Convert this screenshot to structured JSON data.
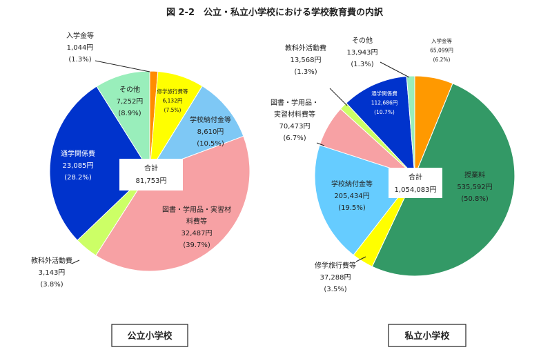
{
  "title": "図 2-2　公立・私立小学校における学校教育費の内訳",
  "chart_data": [
    {
      "type": "pie",
      "caption": "公立小学校",
      "total": {
        "label": "合計",
        "value": "81,753円"
      },
      "slices": [
        {
          "name": "入学金等",
          "amount": "1,044円",
          "percent": "(1.3%)",
          "value": 1.3,
          "color": "#FF8C00"
        },
        {
          "name": "修学旅行費等",
          "amount": "6,132円",
          "percent": "(7.5%)",
          "value": 7.5,
          "color": "#FFFF00"
        },
        {
          "name": "学校納付金等",
          "amount": "8,610円",
          "percent": "(10.5%)",
          "value": 10.5,
          "color": "#7EC8F5"
        },
        {
          "name": "図書・学用品・実習材料費等",
          "name_lines": [
            "図書・学用品・実習材",
            "料費等"
          ],
          "amount": "32,487円",
          "percent": "(39.7%)",
          "value": 39.7,
          "color": "#F7A1A4"
        },
        {
          "name": "教科外活動費",
          "amount": "3,143円",
          "percent": "(3.8%)",
          "value": 3.8,
          "color": "#CCFF66"
        },
        {
          "name": "通学関係費",
          "amount": "23,085円",
          "percent": "(28.2%)",
          "value": 28.2,
          "color": "#0033CC"
        },
        {
          "name": "その他",
          "amount": "7,252円",
          "percent": "(8.9%)",
          "value": 8.9,
          "color": "#99EEBB"
        }
      ]
    },
    {
      "type": "pie",
      "caption": "私立小学校",
      "total": {
        "label": "合計",
        "value": "1,054,083円"
      },
      "slices": [
        {
          "name": "入学金等",
          "amount": "65,099円",
          "percent": "(6.2%)",
          "value": 6.2,
          "color": "#FF9900"
        },
        {
          "name": "授業料",
          "amount": "535,592円",
          "percent": "(50.8%)",
          "value": 50.8,
          "color": "#339966"
        },
        {
          "name": "修学旅行費等",
          "amount": "37,288円",
          "percent": "(3.5%)",
          "value": 3.5,
          "color": "#FFFF00"
        },
        {
          "name": "学校納付金等",
          "amount": "205,434円",
          "percent": "(19.5%)",
          "value": 19.5,
          "color": "#66CCFF"
        },
        {
          "name": "図書・学用品・実習材料費等",
          "name_lines": [
            "図書・学用品・",
            "実習材料費等"
          ],
          "amount": "70,473円",
          "percent": "(6.7%)",
          "value": 6.7,
          "color": "#F7A1A4"
        },
        {
          "name": "教科外活動費",
          "amount": "13,568円",
          "percent": "(1.3%)",
          "value": 1.3,
          "color": "#CCFF66"
        },
        {
          "name": "通学関係費",
          "amount": "112,686円",
          "percent": "(10.7%)",
          "value": 10.7,
          "color": "#0033CC"
        },
        {
          "name": "その他",
          "amount": "13,943円",
          "percent": "(1.3%)",
          "value": 1.3,
          "color": "#99EEBB"
        }
      ]
    }
  ]
}
